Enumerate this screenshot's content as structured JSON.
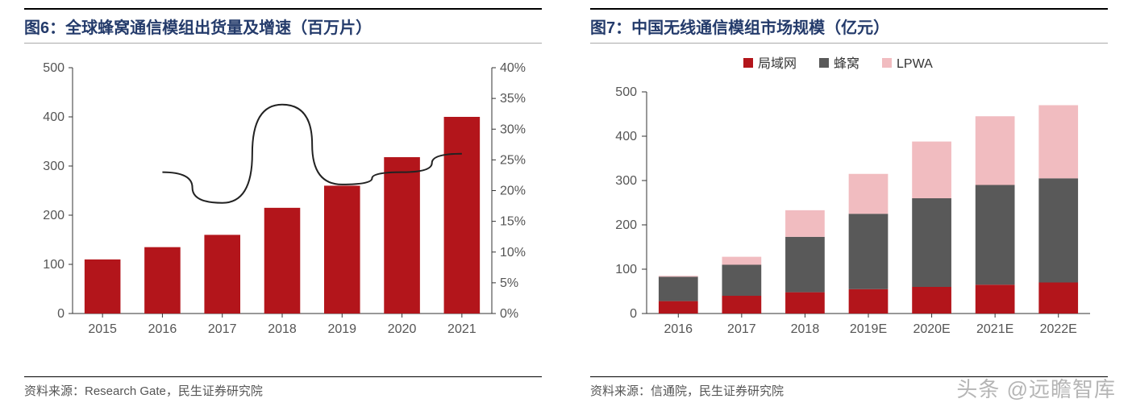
{
  "left": {
    "title": "图6：全球蜂窝通信模组出货量及增速（百万片）",
    "source": "资料来源：Research Gate，民生证券研究院",
    "chart": {
      "type": "bar+line",
      "categories": [
        "2015",
        "2016",
        "2017",
        "2018",
        "2019",
        "2020",
        "2021"
      ],
      "bars": [
        110,
        135,
        160,
        215,
        260,
        318,
        400
      ],
      "bar_color": "#b3151b",
      "axis_color": "#333333",
      "tick_color": "#444444",
      "left_axis": {
        "min": 0,
        "max": 500,
        "step": 100
      },
      "right_axis": {
        "min": 0,
        "max": 40,
        "step": 5,
        "suffix": "%"
      },
      "line_values_pct": [
        null,
        23,
        18,
        34,
        21,
        23,
        26
      ],
      "line_color": "#222222",
      "line_width": 2,
      "bar_width_ratio": 0.6
    }
  },
  "right": {
    "title": "图7：中国无线通信模组市场规模（亿元）",
    "source": "资料来源：信通院，民生证券研究院",
    "chart": {
      "type": "stacked-bar",
      "categories": [
        "2016",
        "2017",
        "2018",
        "2019E",
        "2020E",
        "2021E",
        "2022E"
      ],
      "series": [
        {
          "name": "局域网",
          "color": "#b3151b",
          "values": [
            28,
            40,
            48,
            55,
            60,
            65,
            70
          ]
        },
        {
          "name": "蜂窝",
          "color": "#595959",
          "values": [
            55,
            70,
            125,
            170,
            200,
            225,
            235
          ]
        },
        {
          "name": "LPWA",
          "color": "#f1bcc0",
          "values": [
            2,
            18,
            60,
            90,
            128,
            155,
            165
          ]
        }
      ],
      "axis_color": "#333333",
      "y_axis": {
        "min": 0,
        "max": 500,
        "step": 100
      },
      "bar_width_ratio": 0.62,
      "legend_swatch_size": 12
    }
  },
  "watermark": "头条 @远瞻智库"
}
